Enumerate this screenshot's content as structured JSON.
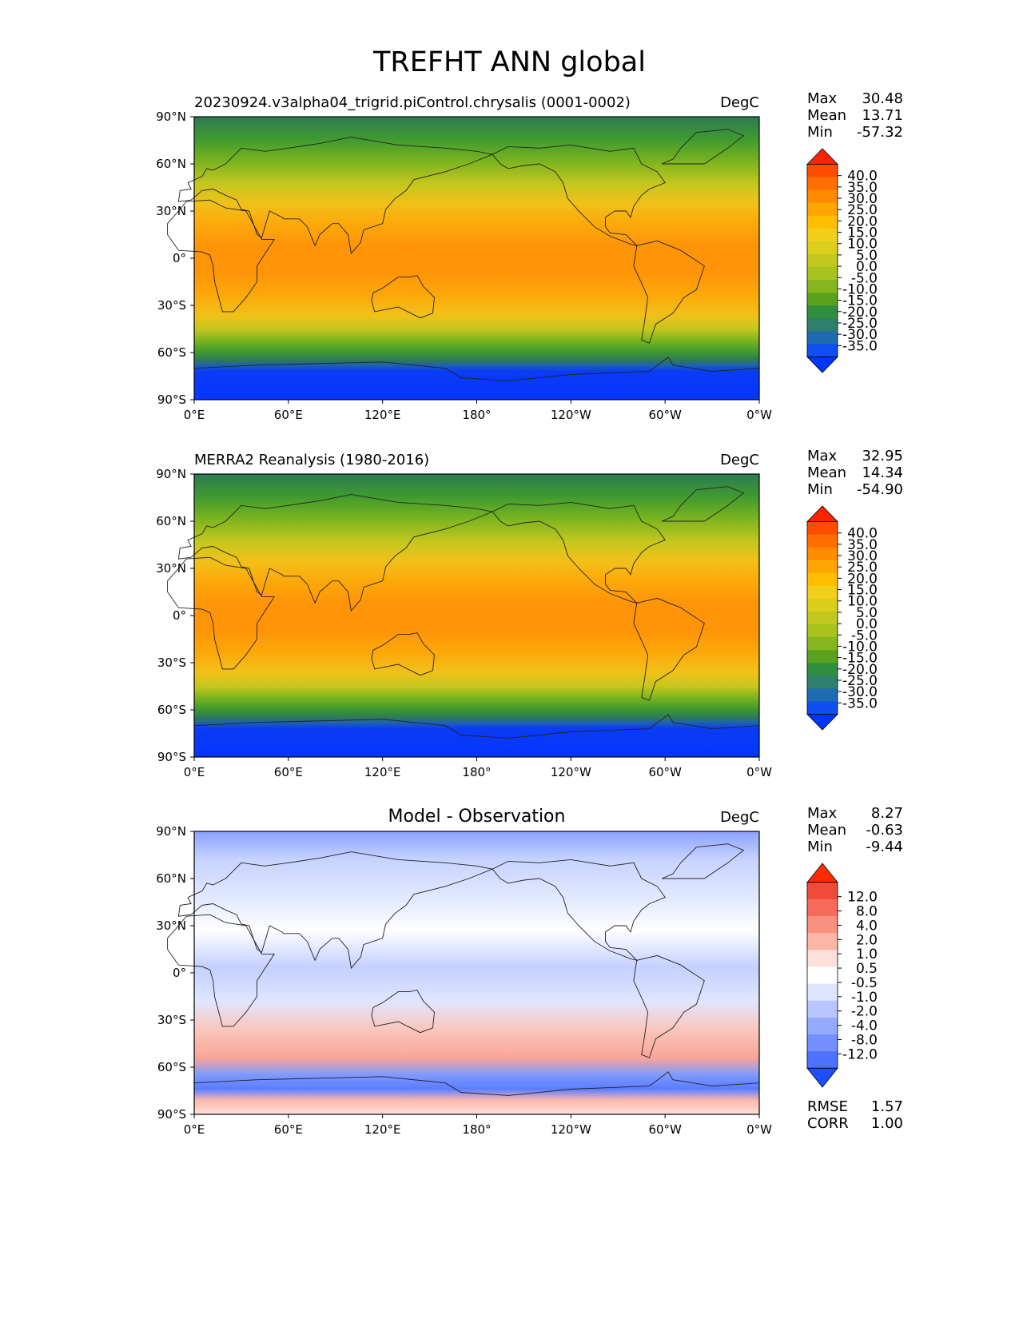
{
  "figure": {
    "title": "TREFHT ANN global"
  },
  "chart_data": [
    {
      "type": "heatmap",
      "title_left": "20230924.v3alpha04_trigrid.piControl.chrysalis (0001-0002)",
      "title_center": "",
      "units": "DegC",
      "stats": [
        {
          "label": "Max",
          "value": "30.48"
        },
        {
          "label": "Mean",
          "value": "13.71"
        },
        {
          "label": "Min",
          "value": "-57.32"
        }
      ],
      "colorbar_ticks": [
        "40.0",
        "35.0",
        "30.0",
        "25.0",
        "20.0",
        "15.0",
        "10.0",
        "5.0",
        "0.0",
        "-5.0",
        "-10.0",
        "-15.0",
        "-20.0",
        "-25.0",
        "-30.0",
        "-35.0"
      ],
      "colorbar_colors": [
        "#ff2200",
        "#ff4d00",
        "#ff6e00",
        "#ff8c00",
        "#ffa500",
        "#ffbe00",
        "#f2cf1a",
        "#dccf1c",
        "#c2c71e",
        "#a8c21e",
        "#86b61e",
        "#5aa21e",
        "#2f8f3f",
        "#2e7f6b",
        "#1e6bb0",
        "#0f4ef0",
        "#0035ff"
      ],
      "xticks": [
        "0°E",
        "60°E",
        "120°E",
        "180°",
        "120°W",
        "60°W",
        "0°W"
      ],
      "yticks": [
        "90°N",
        "60°N",
        "30°N",
        "0°",
        "30°S",
        "60°S",
        "90°S"
      ],
      "extra_stats": []
    },
    {
      "type": "heatmap",
      "title_left": "MERRA2 Reanalysis (1980-2016)",
      "title_center": "",
      "units": "DegC",
      "stats": [
        {
          "label": "Max",
          "value": "32.95"
        },
        {
          "label": "Mean",
          "value": "14.34"
        },
        {
          "label": "Min",
          "value": "-54.90"
        }
      ],
      "colorbar_ticks": [
        "40.0",
        "35.0",
        "30.0",
        "25.0",
        "20.0",
        "15.0",
        "10.0",
        "5.0",
        "0.0",
        "-5.0",
        "-10.0",
        "-15.0",
        "-20.0",
        "-25.0",
        "-30.0",
        "-35.0"
      ],
      "colorbar_colors": [
        "#ff2200",
        "#ff4d00",
        "#ff6e00",
        "#ff8c00",
        "#ffa500",
        "#ffbe00",
        "#f2cf1a",
        "#dccf1c",
        "#c2c71e",
        "#a8c21e",
        "#86b61e",
        "#5aa21e",
        "#2f8f3f",
        "#2e7f6b",
        "#1e6bb0",
        "#0f4ef0",
        "#0035ff"
      ],
      "xticks": [
        "0°E",
        "60°E",
        "120°E",
        "180°",
        "120°W",
        "60°W",
        "0°W"
      ],
      "yticks": [
        "90°N",
        "60°N",
        "30°N",
        "0°",
        "30°S",
        "60°S",
        "90°S"
      ],
      "extra_stats": []
    },
    {
      "type": "heatmap",
      "title_left": "",
      "title_center": "Model - Observation",
      "units": "DegC",
      "stats": [
        {
          "label": "Max",
          "value": "8.27"
        },
        {
          "label": "Mean",
          "value": "-0.63"
        },
        {
          "label": "Min",
          "value": "-9.44"
        }
      ],
      "colorbar_ticks": [
        "12.0",
        "8.0",
        "4.0",
        "2.0",
        "1.0",
        "0.5",
        "-0.5",
        "-1.0",
        "-2.0",
        "-4.0",
        "-8.0",
        "-12.0"
      ],
      "colorbar_colors": [
        "#ff2a00",
        "#f04a3a",
        "#f76b5c",
        "#fa9080",
        "#fbb6a8",
        "#fde0da",
        "#ffffff",
        "#dde5ff",
        "#b7c6ff",
        "#93aaff",
        "#7490ff",
        "#4d72ff",
        "#1e4fff"
      ],
      "xticks": [
        "0°E",
        "60°E",
        "120°E",
        "180°",
        "120°W",
        "60°W",
        "0°W"
      ],
      "yticks": [
        "90°N",
        "60°N",
        "30°N",
        "0°",
        "30°S",
        "60°S",
        "90°S"
      ],
      "extra_stats": [
        {
          "label": "RMSE",
          "value": "1.57"
        },
        {
          "label": "CORR",
          "value": "1.00"
        }
      ]
    }
  ]
}
